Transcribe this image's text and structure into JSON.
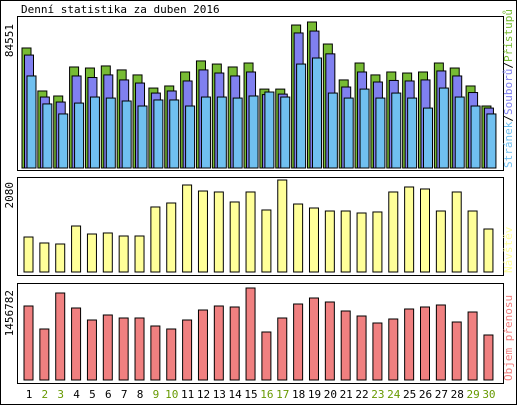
{
  "chart_data": [
    {
      "type": "bar",
      "title": "Denní statistika za duben 2016",
      "categories": [
        "1",
        "2",
        "3",
        "4",
        "5",
        "6",
        "7",
        "8",
        "9",
        "10",
        "11",
        "12",
        "13",
        "14",
        "15",
        "16",
        "17",
        "18",
        "19",
        "20",
        "21",
        "22",
        "23",
        "24",
        "25",
        "26",
        "27",
        "28",
        "29",
        "30"
      ],
      "category_colors": [
        "#000000",
        "#669900",
        "#669900",
        "#000000",
        "#000000",
        "#000000",
        "#000000",
        "#000000",
        "#669900",
        "#669900",
        "#000000",
        "#000000",
        "#000000",
        "#000000",
        "#000000",
        "#669900",
        "#669900",
        "#000000",
        "#000000",
        "#000000",
        "#000000",
        "#000000",
        "#669900",
        "#669900",
        "#000000",
        "#000000",
        "#000000",
        "#000000",
        "#669900",
        "#669900"
      ],
      "legend_separator": "/",
      "ylim": [
        0,
        84551
      ],
      "yticks": [
        84551
      ],
      "series": [
        {
          "name": "Přístupů",
          "color": "#77bb33",
          "values": [
            69500,
            44600,
            41700,
            58500,
            57900,
            59100,
            56800,
            53900,
            46300,
            47500,
            55600,
            62000,
            60200,
            58500,
            60800,
            45700,
            45700,
            82800,
            84551,
            71800,
            51000,
            60800,
            53900,
            55600,
            55000,
            55600,
            60800,
            57900,
            47500,
            35900
          ]
        },
        {
          "name": "Souborů",
          "color": "#8080f0",
          "values": [
            65400,
            41100,
            38200,
            53300,
            52400,
            53900,
            51000,
            49200,
            43400,
            44600,
            50400,
            56800,
            55000,
            53300,
            55600,
            42500,
            42800,
            78200,
            79300,
            66100,
            46900,
            55600,
            49800,
            50700,
            50400,
            51000,
            56200,
            53300,
            43700,
            34700
          ]
        },
        {
          "name": "Stránek",
          "color": "#70c0f0",
          "values": [
            53300,
            37100,
            31300,
            37600,
            41100,
            40500,
            38800,
            35900,
            39400,
            39400,
            35900,
            41100,
            41100,
            40500,
            41700,
            44000,
            41100,
            60200,
            63700,
            43400,
            40500,
            45700,
            40500,
            43400,
            40500,
            34700,
            46300,
            41100,
            35900,
            31300
          ]
        }
      ]
    },
    {
      "type": "bar",
      "ylim": [
        0,
        2080
      ],
      "yticks": [
        2080
      ],
      "series": [
        {
          "name": "Návštěv",
          "color": "#ffff99",
          "values": [
            791,
            656,
            633,
            1040,
            859,
            882,
            814,
            814,
            1470,
            1560,
            1967,
            1831,
            1809,
            1583,
            1809,
            1402,
            2080,
            1537,
            1447,
            1379,
            1379,
            1334,
            1357,
            1809,
            1922,
            1877,
            1379,
            1809,
            1379,
            972
          ]
        }
      ]
    },
    {
      "type": "bar",
      "ylim": [
        0,
        1456782
      ],
      "yticks": [
        1456782
      ],
      "series": [
        {
          "name": "Objem přenosu",
          "color": "#f08080",
          "values": [
            1171800,
            807600,
            1377600,
            1140100,
            950100,
            1029300,
            981800,
            981800,
            855100,
            807600,
            950100,
            1108400,
            1171800,
            1156000,
            1456782,
            760100,
            981800,
            1203400,
            1298400,
            1235100,
            1092600,
            1013400,
            902600,
            966000,
            1124300,
            1156000,
            1187700,
            918400,
            1076800,
            712600
          ]
        }
      ]
    }
  ]
}
